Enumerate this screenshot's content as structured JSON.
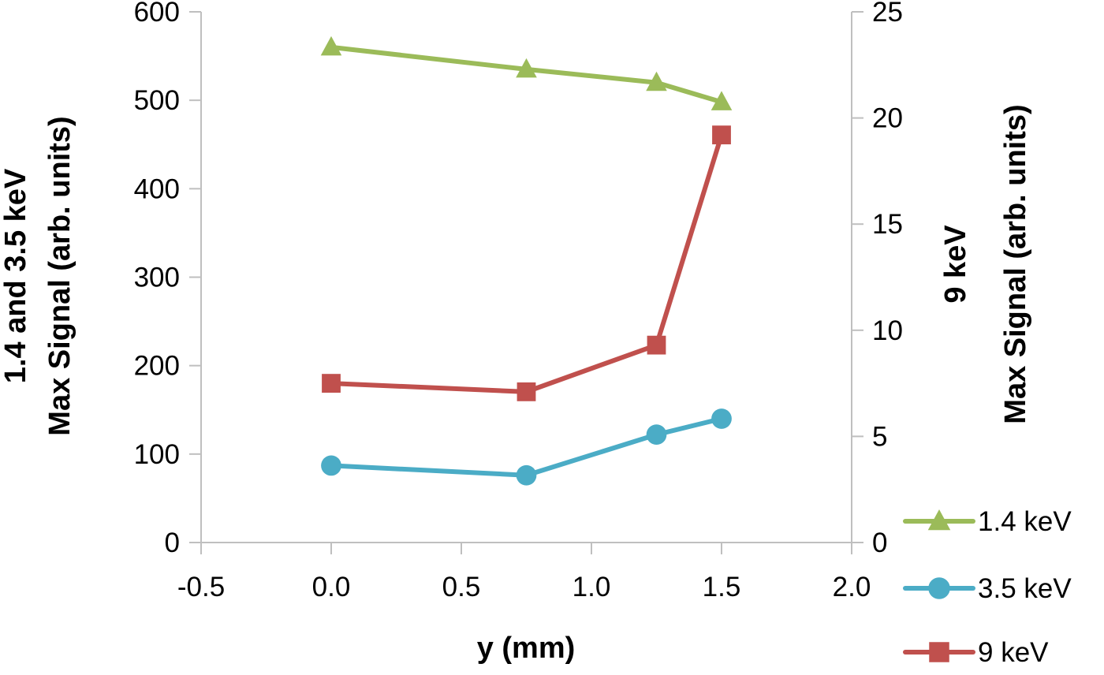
{
  "chart_data": {
    "type": "line",
    "title": "",
    "xlabel": "y (mm)",
    "left_axis_title_line1": "1.4 and 3.5 keV",
    "left_axis_title_line2": "Max Signal (arb. units)",
    "right_axis_title_line1": "9 keV",
    "right_axis_title_line2": "Max Signal (arb. units)",
    "x": [
      0.0,
      0.75,
      1.25,
      1.5
    ],
    "series": [
      {
        "name": "1.4 keV",
        "axis": "left",
        "color": "#9bbb59",
        "marker": "triangle",
        "values": [
          560,
          535,
          520,
          498
        ]
      },
      {
        "name": "3.5 keV",
        "axis": "left",
        "color": "#4bacc6",
        "marker": "circle",
        "values": [
          87,
          76,
          122,
          140
        ]
      },
      {
        "name": "9 keV",
        "axis": "right",
        "color": "#c0504d",
        "marker": "square",
        "values": [
          7.5,
          7.1,
          9.3,
          19.2
        ]
      }
    ],
    "xlim": [
      -0.5,
      2.0
    ],
    "xticks": [
      -0.5,
      0.0,
      0.5,
      1.0,
      1.5,
      2.0
    ],
    "ylim_left": [
      0,
      600
    ],
    "yticks_left": [
      0,
      100,
      200,
      300,
      400,
      500,
      600
    ],
    "ylim_right": [
      0,
      25
    ],
    "yticks_right": [
      0,
      5,
      10,
      15,
      20,
      25
    ],
    "legend": [
      "1.4 keV",
      "3.5 keV",
      "9 keV"
    ],
    "legend_position": "right-bottom",
    "grid": false,
    "axis_color": "#bfbfbf",
    "text_color": "#000000",
    "background": "#ffffff"
  }
}
